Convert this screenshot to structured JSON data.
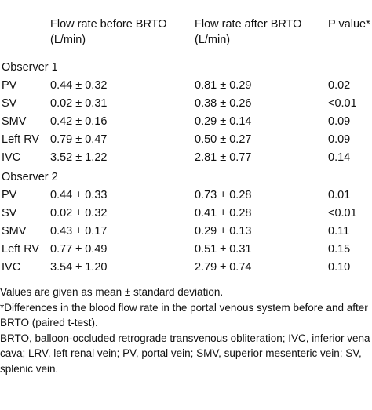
{
  "table": {
    "header": [
      "",
      "Flow rate before BRTO (L/min)",
      "Flow rate after BRTO (L/min)",
      "P value*"
    ],
    "groups": [
      {
        "name": "Observer 1",
        "rows": [
          [
            "PV",
            "0.44 ± 0.32",
            "0.81 ± 0.29",
            "0.02"
          ],
          [
            "SV",
            "0.02 ± 0.31",
            "0.38 ± 0.26",
            "<0.01"
          ],
          [
            "SMV",
            "0.42 ± 0.16",
            "0.29 ± 0.14",
            "0.09"
          ],
          [
            "Left RV",
            "0.79 ± 0.47",
            "0.50 ± 0.27",
            "0.09"
          ],
          [
            "IVC",
            "3.52 ± 1.22",
            "2.81 ± 0.77",
            "0.14"
          ]
        ]
      },
      {
        "name": "Observer 2",
        "rows": [
          [
            "PV",
            "0.44 ± 0.33",
            "0.73 ± 0.28",
            "0.01"
          ],
          [
            "SV",
            "0.02 ± 0.32",
            "0.41 ± 0.28",
            "<0.01"
          ],
          [
            "SMV",
            "0.43 ± 0.17",
            "0.29 ± 0.13",
            "0.11"
          ],
          [
            "Left RV",
            "0.77 ± 0.49",
            "0.51 ± 0.31",
            "0.15"
          ],
          [
            "IVC",
            "3.54 ± 1.20",
            "2.79 ± 0.74",
            "0.10"
          ]
        ]
      }
    ]
  },
  "notes": [
    "Values are given as mean ± standard deviation.",
    "*Differences in the blood flow rate in the portal venous system before and after BRTO (paired t-test).",
    "BRTO, balloon-occluded retrograde transvenous obliteration; IVC, inferior vena cava; LRV, left renal vein; PV, portal vein; SMV, superior mesenteric vein; SV, splenic vein."
  ]
}
